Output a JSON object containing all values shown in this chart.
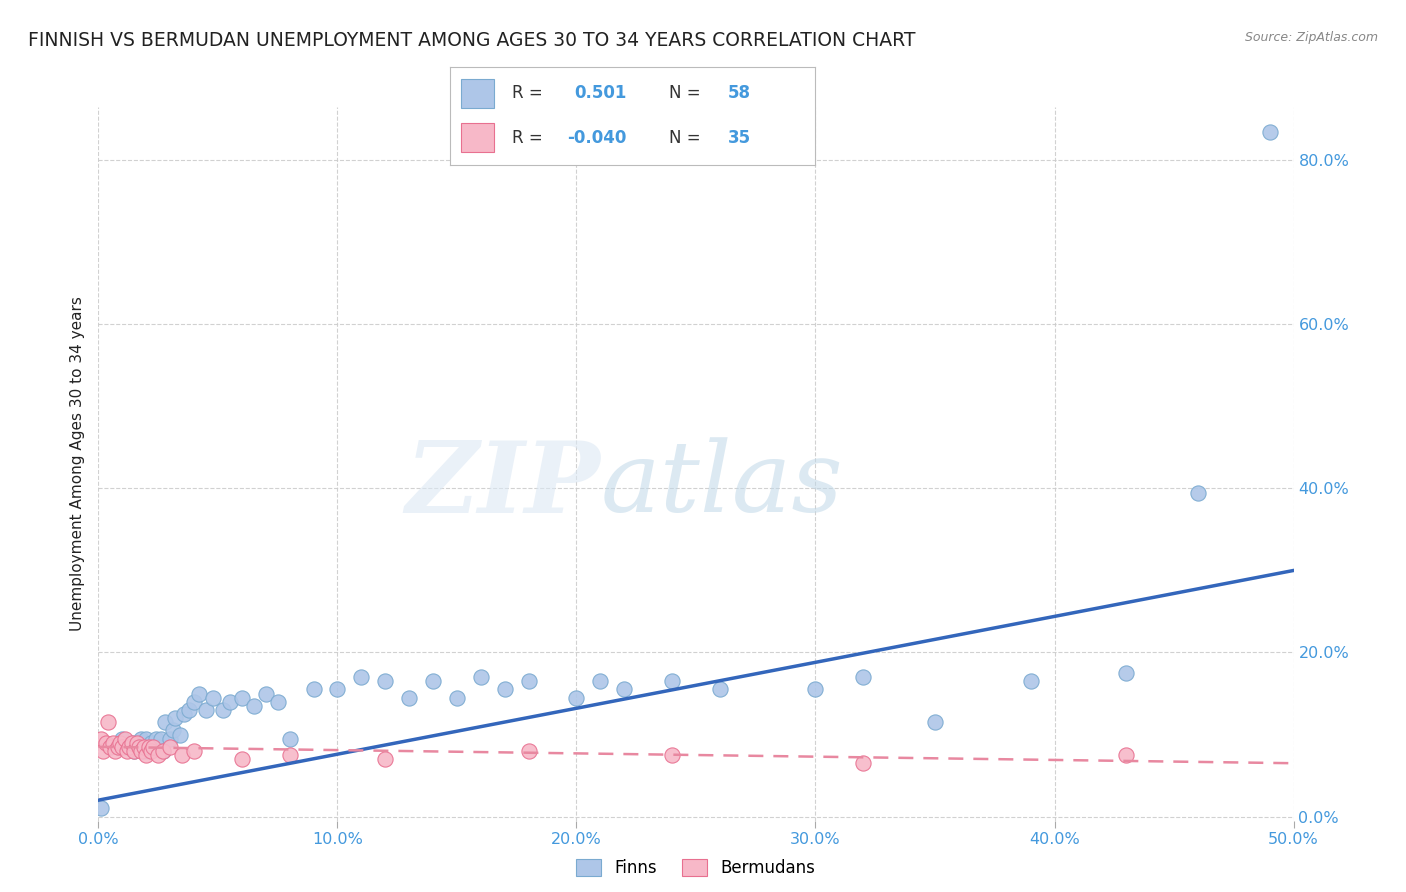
{
  "title": "FINNISH VS BERMUDAN UNEMPLOYMENT AMONG AGES 30 TO 34 YEARS CORRELATION CHART",
  "source": "Source: ZipAtlas.com",
  "ylabel": "Unemployment Among Ages 30 to 34 years",
  "xlim": [
    0.0,
    0.5
  ],
  "ylim": [
    -0.005,
    0.865
  ],
  "finn_color": "#aec6e8",
  "finn_edge_color": "#7aaad0",
  "bermuda_color": "#f7b8c8",
  "bermuda_edge_color": "#e87090",
  "finn_line_color": "#3366bb",
  "bermuda_line_color": "#e888a0",
  "legend_finn_R": "0.501",
  "legend_finn_N": "58",
  "legend_bermuda_R": "-0.040",
  "legend_bermuda_N": "35",
  "finn_x": [
    0.001,
    0.008,
    0.01,
    0.012,
    0.014,
    0.015,
    0.016,
    0.017,
    0.018,
    0.019,
    0.02,
    0.021,
    0.022,
    0.023,
    0.024,
    0.025,
    0.026,
    0.027,
    0.028,
    0.03,
    0.031,
    0.032,
    0.034,
    0.036,
    0.038,
    0.04,
    0.042,
    0.045,
    0.048,
    0.052,
    0.055,
    0.06,
    0.065,
    0.07,
    0.075,
    0.08,
    0.09,
    0.1,
    0.11,
    0.12,
    0.13,
    0.14,
    0.15,
    0.16,
    0.17,
    0.18,
    0.2,
    0.21,
    0.22,
    0.24,
    0.26,
    0.3,
    0.32,
    0.35,
    0.39,
    0.43,
    0.46,
    0.49
  ],
  "finn_y": [
    0.01,
    0.085,
    0.095,
    0.085,
    0.09,
    0.08,
    0.09,
    0.085,
    0.095,
    0.08,
    0.095,
    0.08,
    0.09,
    0.085,
    0.095,
    0.085,
    0.095,
    0.08,
    0.115,
    0.095,
    0.105,
    0.12,
    0.1,
    0.125,
    0.13,
    0.14,
    0.15,
    0.13,
    0.145,
    0.13,
    0.14,
    0.145,
    0.135,
    0.15,
    0.14,
    0.095,
    0.155,
    0.155,
    0.17,
    0.165,
    0.145,
    0.165,
    0.145,
    0.17,
    0.155,
    0.165,
    0.145,
    0.165,
    0.155,
    0.165,
    0.155,
    0.155,
    0.17,
    0.115,
    0.165,
    0.175,
    0.395,
    0.835
  ],
  "bermuda_x": [
    0.001,
    0.002,
    0.003,
    0.004,
    0.005,
    0.006,
    0.007,
    0.008,
    0.009,
    0.01,
    0.011,
    0.012,
    0.013,
    0.014,
    0.015,
    0.016,
    0.017,
    0.018,
    0.019,
    0.02,
    0.021,
    0.022,
    0.023,
    0.025,
    0.027,
    0.03,
    0.035,
    0.04,
    0.06,
    0.08,
    0.12,
    0.18,
    0.24,
    0.32,
    0.43
  ],
  "bermuda_y": [
    0.095,
    0.08,
    0.09,
    0.115,
    0.085,
    0.09,
    0.08,
    0.085,
    0.09,
    0.085,
    0.095,
    0.08,
    0.085,
    0.09,
    0.08,
    0.09,
    0.085,
    0.08,
    0.085,
    0.075,
    0.085,
    0.08,
    0.085,
    0.075,
    0.08,
    0.085,
    0.075,
    0.08,
    0.07,
    0.075,
    0.07,
    0.08,
    0.075,
    0.065,
    0.075
  ],
  "finn_trend": [
    0.02,
    0.3
  ],
  "bermuda_trend_start": 0.085,
  "bermuda_trend_end": 0.065,
  "grid_color": "#cccccc",
  "background_color": "#ffffff",
  "tick_color": "#4499dd",
  "title_color": "#222222",
  "title_fontsize": 13.5,
  "axis_label_fontsize": 11,
  "tick_fontsize": 11.5,
  "marker_size": 120
}
